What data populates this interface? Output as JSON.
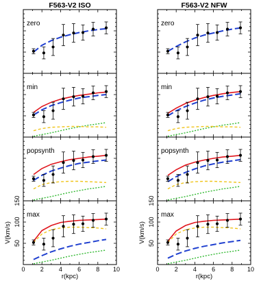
{
  "panel_titles": [
    "F563-V2 ISO",
    "F563-V2 NFW"
  ],
  "row_labels": [
    "zero",
    "min",
    "popsynth",
    "max"
  ],
  "ylabel": "V(km/s)",
  "xlabel": "r(kpc)",
  "x_tick_labels": [
    "0",
    "2",
    "4",
    "6",
    "8",
    "10"
  ],
  "y_tick_labels": [
    "0",
    "50",
    "100",
    "150"
  ],
  "colors": {
    "total_fit": "#e0141b",
    "halo": "#1f3fcf",
    "stars": "#f0c419",
    "gas": "#2fb82f",
    "data": "#000000"
  },
  "chart_data": {
    "type": "line",
    "title": "",
    "xlabel": "r(kpc)",
    "ylabel": "V(km/s)",
    "xlim": [
      0,
      10
    ],
    "ylim": [
      0,
      150
    ],
    "columns": [
      "F563-V2 ISO",
      "F563-V2 NFW"
    ],
    "rows": [
      "zero",
      "min",
      "popsynth",
      "max"
    ],
    "observed": {
      "x": [
        1.1,
        2.2,
        3.2,
        4.3,
        5.4,
        6.4,
        7.5,
        8.9
      ],
      "y": [
        52,
        48,
        62,
        90,
        95,
        96,
        104,
        107
      ],
      "yerr": [
        6,
        14,
        20,
        25,
        22,
        18,
        16,
        14
      ]
    },
    "panels": [
      {
        "column": "F563-V2 ISO",
        "row": "zero",
        "series": [
          {
            "component": "halo",
            "x": [
              1.1,
              2,
              3,
              4,
              5,
              6,
              7,
              8,
              8.9
            ],
            "y": [
              50,
              66,
              77,
              85,
              91,
              96,
              100,
              103,
              105
            ]
          }
        ]
      },
      {
        "column": "F563-V2 NFW",
        "row": "zero",
        "series": [
          {
            "component": "halo",
            "x": [
              1.1,
              2,
              3,
              4,
              5,
              6,
              7,
              8,
              8.9
            ],
            "y": [
              52,
              63,
              74,
              83,
              90,
              95,
              100,
              104,
              107
            ]
          }
        ]
      },
      {
        "column": "F563-V2 ISO",
        "row": "min",
        "series": [
          {
            "component": "total_fit",
            "x": [
              1.1,
              2,
              3,
              4,
              5,
              6,
              7,
              8,
              8.9
            ],
            "y": [
              58,
              72,
              82,
              89,
              94,
              98,
              101,
              104,
              106
            ]
          },
          {
            "component": "halo",
            "x": [
              1.1,
              2,
              3,
              4,
              5,
              6,
              7,
              8,
              8.9
            ],
            "y": [
              52,
              64,
              74,
              81,
              87,
              92,
              95,
              98,
              100
            ]
          },
          {
            "component": "stars",
            "x": [
              1.1,
              2,
              3,
              4,
              5,
              6,
              7,
              8,
              8.9
            ],
            "y": [
              15,
              20,
              23,
              24,
              25,
              25,
              24,
              24,
              23
            ]
          },
          {
            "component": "gas",
            "x": [
              1.1,
              2,
              3,
              4,
              5,
              6,
              7,
              8,
              8.9
            ],
            "y": [
              2,
              6,
              10,
              15,
              20,
              24,
              28,
              31,
              34
            ]
          }
        ]
      },
      {
        "column": "F563-V2 NFW",
        "row": "min",
        "series": [
          {
            "component": "total_fit",
            "x": [
              1.1,
              2,
              3,
              4,
              5,
              6,
              7,
              8,
              8.9
            ],
            "y": [
              56,
              68,
              79,
              87,
              93,
              98,
              102,
              105,
              107
            ]
          },
          {
            "component": "halo",
            "x": [
              1.1,
              2,
              3,
              4,
              5,
              6,
              7,
              8,
              8.9
            ],
            "y": [
              50,
              62,
              72,
              80,
              87,
              92,
              96,
              99,
              102
            ]
          },
          {
            "component": "stars",
            "x": [
              1.1,
              2,
              3,
              4,
              5,
              6,
              7,
              8,
              8.9
            ],
            "y": [
              15,
              20,
              23,
              24,
              25,
              25,
              24,
              24,
              23
            ]
          },
          {
            "component": "gas",
            "x": [
              1.1,
              2,
              3,
              4,
              5,
              6,
              7,
              8,
              8.9
            ],
            "y": [
              2,
              6,
              10,
              15,
              20,
              24,
              28,
              31,
              34
            ]
          }
        ]
      },
      {
        "column": "F563-V2 ISO",
        "row": "popsynth",
        "series": [
          {
            "component": "total_fit",
            "x": [
              1.1,
              2,
              3,
              4,
              5,
              6,
              7,
              8,
              8.9
            ],
            "y": [
              62,
              76,
              86,
              92,
              97,
              100,
              103,
              105,
              107
            ]
          },
          {
            "component": "halo",
            "x": [
              1.1,
              2,
              3,
              4,
              5,
              6,
              7,
              8,
              8.9
            ],
            "y": [
              48,
              60,
              70,
              77,
              83,
              88,
              91,
              94,
              96
            ]
          },
          {
            "component": "stars",
            "x": [
              1.1,
              2,
              3,
              4,
              5,
              6,
              7,
              8,
              8.9
            ],
            "y": [
              28,
              38,
              43,
              45,
              46,
              46,
              45,
              44,
              43
            ]
          },
          {
            "component": "gas",
            "x": [
              1.1,
              2,
              3,
              4,
              5,
              6,
              7,
              8,
              8.9
            ],
            "y": [
              2,
              6,
              10,
              15,
              20,
              24,
              28,
              31,
              34
            ]
          }
        ]
      },
      {
        "column": "F563-V2 NFW",
        "row": "popsynth",
        "series": [
          {
            "component": "total_fit",
            "x": [
              1.1,
              2,
              3,
              4,
              5,
              6,
              7,
              8,
              8.9
            ],
            "y": [
              60,
              73,
              84,
              91,
              96,
              100,
              103,
              105,
              107
            ]
          },
          {
            "component": "halo",
            "x": [
              1.1,
              2,
              3,
              4,
              5,
              6,
              7,
              8,
              8.9
            ],
            "y": [
              45,
              57,
              67,
              75,
              82,
              87,
              91,
              94,
              97
            ]
          },
          {
            "component": "stars",
            "x": [
              1.1,
              2,
              3,
              4,
              5,
              6,
              7,
              8,
              8.9
            ],
            "y": [
              28,
              38,
              43,
              45,
              46,
              46,
              45,
              44,
              43
            ]
          },
          {
            "component": "gas",
            "x": [
              1.1,
              2,
              3,
              4,
              5,
              6,
              7,
              8,
              8.9
            ],
            "y": [
              2,
              6,
              10,
              15,
              20,
              24,
              28,
              31,
              34
            ]
          }
        ]
      },
      {
        "column": "F563-V2 ISO",
        "row": "max",
        "series": [
          {
            "component": "total_fit",
            "x": [
              1.1,
              2,
              3,
              4,
              5,
              6,
              7,
              8,
              8.9
            ],
            "y": [
              55,
              80,
              92,
              99,
              102,
              104,
              105,
              106,
              107
            ]
          },
          {
            "component": "halo",
            "x": [
              1.1,
              2,
              3,
              4,
              5,
              6,
              7,
              8,
              8.9
            ],
            "y": [
              12,
              21,
              30,
              37,
              43,
              48,
              52,
              56,
              59
            ]
          },
          {
            "component": "stars",
            "x": [
              1.1,
              2,
              3,
              4,
              5,
              6,
              7,
              8,
              8.9
            ],
            "y": [
              52,
              72,
              82,
              86,
              88,
              88,
              87,
              86,
              84
            ]
          },
          {
            "component": "gas",
            "x": [
              1.1,
              2,
              3,
              4,
              5,
              6,
              7,
              8,
              8.9
            ],
            "y": [
              2,
              6,
              10,
              15,
              20,
              24,
              28,
              31,
              34
            ]
          }
        ]
      },
      {
        "column": "F563-V2 NFW",
        "row": "max",
        "series": [
          {
            "component": "total_fit",
            "x": [
              1.1,
              2,
              3,
              4,
              5,
              6,
              7,
              8,
              8.9
            ],
            "y": [
              55,
              79,
              92,
              99,
              102,
              104,
              105,
              106,
              107
            ]
          },
          {
            "component": "halo",
            "x": [
              1.1,
              2,
              3,
              4,
              5,
              6,
              7,
              8,
              8.9
            ],
            "y": [
              15,
              24,
              32,
              38,
              43,
              47,
              51,
              54,
              57
            ]
          },
          {
            "component": "stars",
            "x": [
              1.1,
              2,
              3,
              4,
              5,
              6,
              7,
              8,
              8.9
            ],
            "y": [
              52,
              72,
              82,
              86,
              88,
              88,
              87,
              86,
              84
            ]
          },
          {
            "component": "gas",
            "x": [
              1.1,
              2,
              3,
              4,
              5,
              6,
              7,
              8,
              8.9
            ],
            "y": [
              2,
              6,
              10,
              15,
              20,
              24,
              28,
              31,
              34
            ]
          }
        ]
      }
    ]
  }
}
